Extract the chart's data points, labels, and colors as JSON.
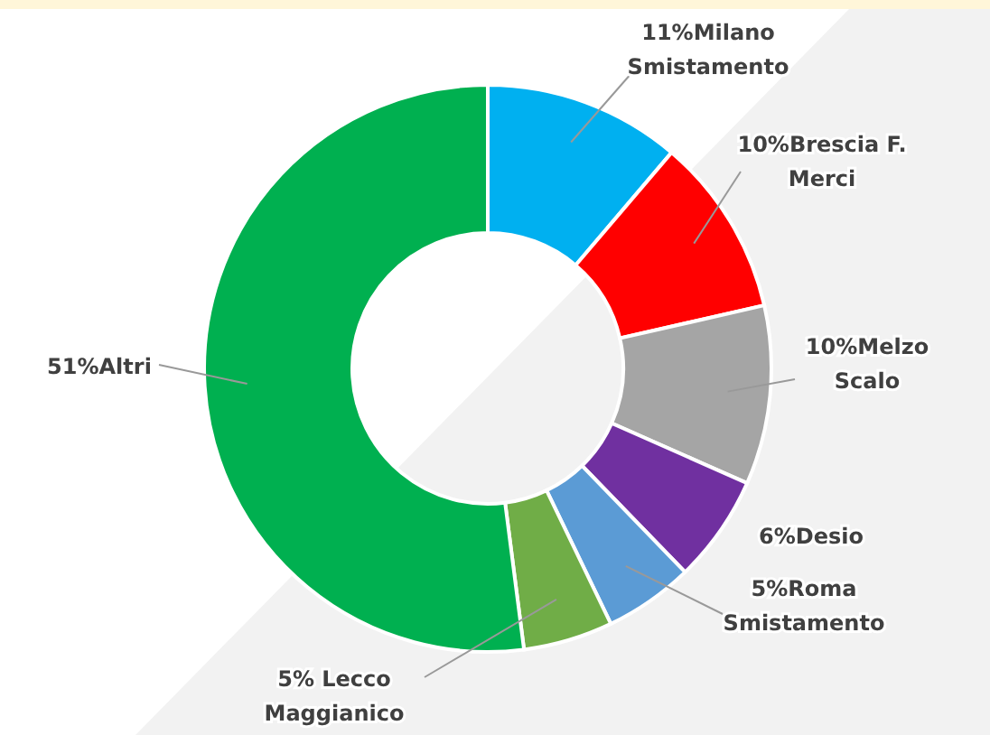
{
  "chart_data": {
    "type": "donut",
    "categories": [
      "Milano\nSmistamento",
      "Brescia F.\nMerci",
      "Melzo\nScalo",
      "Desio",
      "Roma\nSmistamento",
      "Lecco\nMaggianico",
      "Altri"
    ],
    "values": [
      11,
      10,
      10,
      6,
      5,
      5,
      51
    ],
    "value_labels": [
      "11%",
      "10%",
      "10%",
      "6%",
      "5%",
      "5% ",
      "51%"
    ],
    "colors": [
      "#00b0f0",
      "#ff0000",
      "#a5a5a5",
      "#7030a0",
      "#5b9bd5",
      "#70ad47",
      "#00b050"
    ],
    "legend": false
  }
}
